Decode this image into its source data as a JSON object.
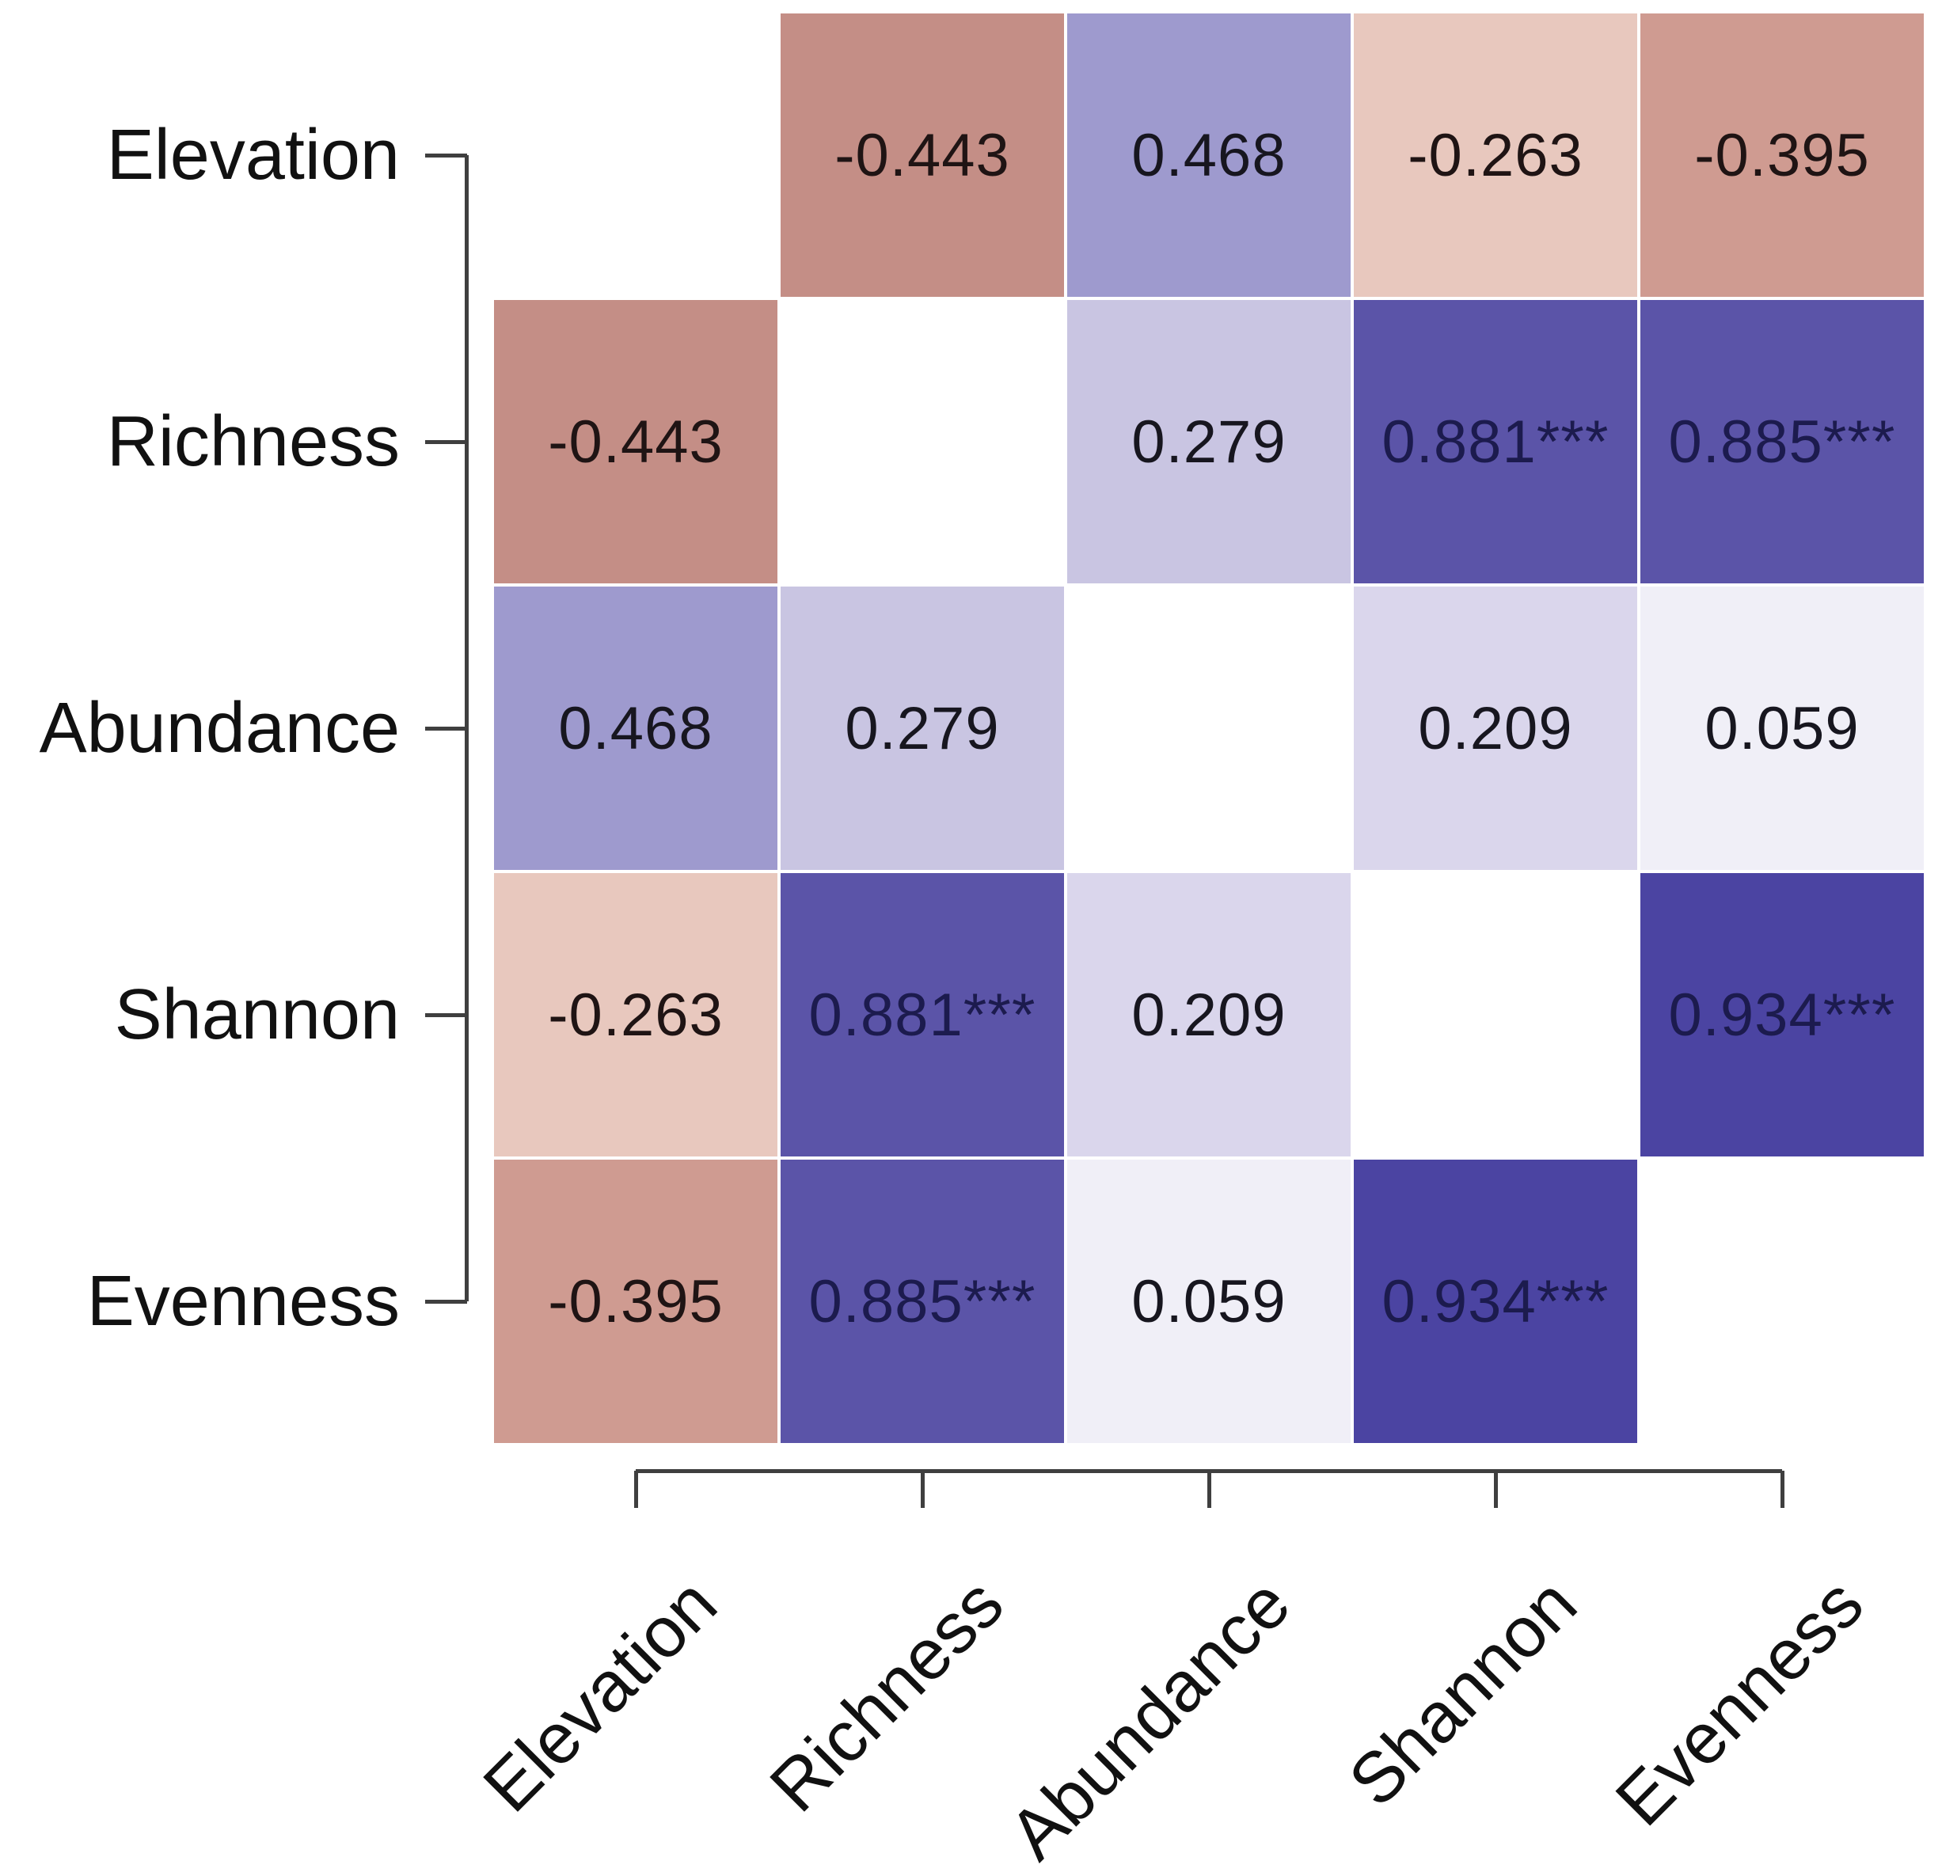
{
  "figure": {
    "background": "#ffffff",
    "axis_color": "#3f3f3f",
    "label_color": "#111111"
  },
  "chart_data": {
    "type": "heatmap",
    "subtype": "correlation-matrix",
    "title": "",
    "grid": "off",
    "legend": "none",
    "variables": [
      "Elevation",
      "Richness",
      "Abundance",
      "Shannon",
      "Evenness"
    ],
    "x_tick_labels": [
      "Elevation",
      "Richness",
      "Abundance",
      "Shannon",
      "Evenness"
    ],
    "y_tick_labels": [
      "Elevation",
      "Richness",
      "Abundance",
      "Shannon",
      "Evenness"
    ],
    "value_range": [
      -1,
      1
    ],
    "matrix": [
      [
        null,
        -0.443,
        0.468,
        -0.263,
        -0.395
      ],
      [
        -0.443,
        null,
        0.279,
        0.881,
        0.885
      ],
      [
        0.468,
        0.279,
        null,
        0.209,
        0.059
      ],
      [
        -0.263,
        0.881,
        0.209,
        null,
        0.934
      ],
      [
        -0.395,
        0.885,
        0.059,
        0.934,
        null
      ]
    ],
    "cell_labels": [
      [
        "",
        "-0.443",
        "0.468",
        "-0.263",
        "-0.395"
      ],
      [
        "-0.443",
        "",
        "0.279",
        "0.881***",
        "0.885***"
      ],
      [
        "0.468",
        "0.279",
        "",
        "0.209",
        "0.059"
      ],
      [
        "-0.263",
        "0.881***",
        "0.209",
        "",
        "0.934***"
      ],
      [
        "-0.395",
        "0.885***",
        "0.059",
        "0.934***",
        ""
      ]
    ],
    "cell_colors": [
      [
        "#ffffff",
        "#c48e86",
        "#9e9ace",
        "#e8c8be",
        "#cf9b91"
      ],
      [
        "#c48e86",
        "#ffffff",
        "#c9c5e2",
        "#5b54a8",
        "#5b54a8"
      ],
      [
        "#9e9ace",
        "#c9c5e2",
        "#ffffff",
        "#dad6ec",
        "#f0eff7"
      ],
      [
        "#e8c8be",
        "#5b54a8",
        "#dad6ec",
        "#ffffff",
        "#4b44a2"
      ],
      [
        "#cf9b91",
        "#5b54a8",
        "#f0eff7",
        "#4b44a2",
        "#ffffff"
      ]
    ],
    "cell_text_colors": [
      [
        "",
        "#1f1414",
        "#17161f",
        "#1f1414",
        "#1f1414"
      ],
      [
        "#1f1414",
        "",
        "#17161f",
        "#1c1b4e",
        "#1c1b4e"
      ],
      [
        "#17161f",
        "#17161f",
        "",
        "#17161f",
        "#17161f"
      ],
      [
        "#1f1414",
        "#1c1b4e",
        "#17161f",
        "",
        "#1c1b4e"
      ],
      [
        "#1f1414",
        "#1c1b4e",
        "#17161f",
        "#1c1b4e",
        ""
      ]
    ]
  }
}
